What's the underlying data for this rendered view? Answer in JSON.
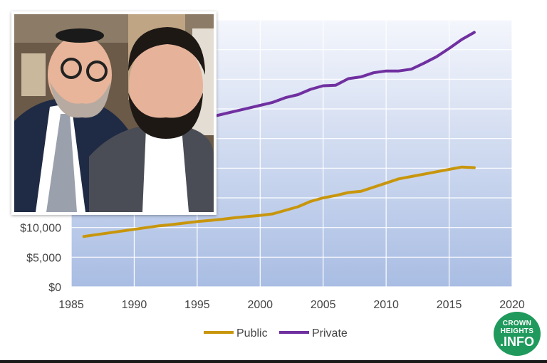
{
  "chart_data": {
    "type": "line",
    "title": "",
    "xlabel": "",
    "ylabel": "",
    "xlim": [
      1985,
      2020
    ],
    "ylim": [
      0,
      45000
    ],
    "x_ticks": [
      1985,
      1990,
      1995,
      2000,
      2005,
      2010,
      2015,
      2020
    ],
    "y_ticks_labeled": [
      "$0",
      "$5,000",
      "$10,000"
    ],
    "y_tick_values": [
      0,
      5000,
      10000
    ],
    "grid": true,
    "legend_position": "bottom-center",
    "series": [
      {
        "name": "Public",
        "color": "#c8960c",
        "x": [
          1986,
          1987,
          1988,
          1989,
          1990,
          1991,
          1992,
          1993,
          1994,
          1995,
          1996,
          1997,
          1998,
          1999,
          2000,
          2001,
          2002,
          2003,
          2004,
          2005,
          2006,
          2007,
          2008,
          2009,
          2010,
          2011,
          2012,
          2013,
          2014,
          2015,
          2016,
          2017
        ],
        "y": [
          8500,
          8800,
          9100,
          9400,
          9700,
          10000,
          10300,
          10500,
          10750,
          11000,
          11200,
          11400,
          11650,
          11850,
          12050,
          12300,
          12900,
          13500,
          14400,
          15000,
          15400,
          15900,
          16100,
          16800,
          17500,
          18200,
          18600,
          19000,
          19400,
          19800,
          20200,
          20100
        ]
      },
      {
        "name": "Private",
        "color": "#7030a0",
        "x": [
          1996,
          1997,
          1998,
          1999,
          2000,
          2001,
          2002,
          2003,
          2004,
          2005,
          2006,
          2007,
          2008,
          2009,
          2010,
          2011,
          2012,
          2013,
          2014,
          2015,
          2016,
          2017
        ],
        "y": [
          28600,
          29100,
          29600,
          30100,
          30600,
          31100,
          31900,
          32400,
          33300,
          33900,
          34000,
          35100,
          35400,
          36100,
          36400,
          36400,
          36700,
          37700,
          38800,
          40200,
          41700,
          42900
        ]
      }
    ]
  },
  "photo": {
    "label": "two-men-selfie"
  },
  "logo": {
    "line1": "CROWN",
    "line2": "HEIGHTS",
    "line3": ".INFO",
    "color": "#1f9a5c"
  }
}
